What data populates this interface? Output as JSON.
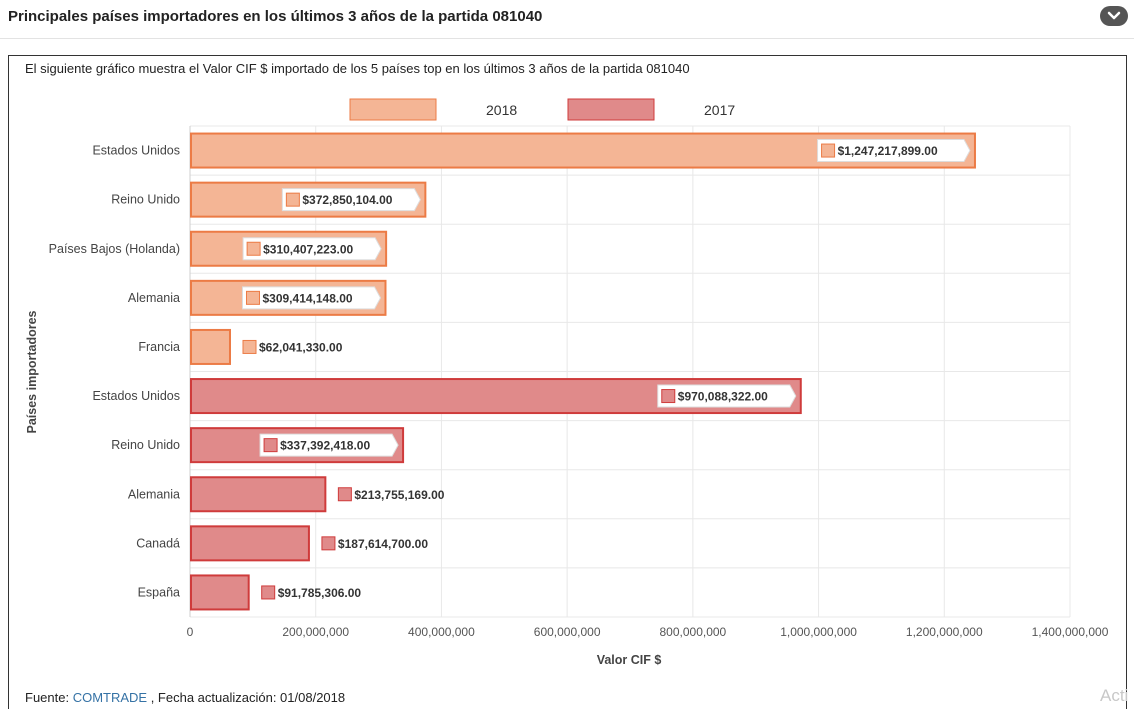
{
  "header": {
    "title": "Principales países importadores en los últimos 3 años de la partida 081040"
  },
  "description": "El siguiente gráfico muestra el Valor CIF $ importado de los 5 países top en los últimos 3 años de la partida 081040",
  "footer": {
    "source_label": "Fuente: ",
    "source_link": "COMTRADE",
    "update_text": " , Fecha actualización: 01/08/2018"
  },
  "watermark": "Acti",
  "colors": {
    "2018_fill": "#f4b595",
    "2018_stroke": "#ec7b45",
    "2017_fill": "#e08a8a",
    "2017_stroke": "#cf3b3b",
    "grid": "#e8e8e8"
  },
  "chart_data": {
    "type": "bar",
    "orientation": "horizontal",
    "xlabel": "Valor CIF $",
    "ylabel": "Países importadores",
    "xlim": [
      0,
      1400000000
    ],
    "xticks": [
      "0",
      "200,000,000",
      "400,000,000",
      "600,000,000",
      "800,000,000",
      "1,000,000,000",
      "1,200,000,000",
      "1,400,000,000"
    ],
    "grid": true,
    "legend_position": "top",
    "series": [
      {
        "name": "2018",
        "color_key": "2018",
        "bars": [
          {
            "country": "Estados Unidos",
            "value": 1247217899,
            "label": "$1,247,217,899.00"
          },
          {
            "country": "Reino Unido",
            "value": 372850104,
            "label": "$372,850,104.00"
          },
          {
            "country": "Países Bajos (Holanda)",
            "value": 310407223,
            "label": "$310,407,223.00"
          },
          {
            "country": "Alemania",
            "value": 309414148,
            "label": "$309,414,148.00"
          },
          {
            "country": "Francia",
            "value": 62041330,
            "label": "$62,041,330.00"
          }
        ]
      },
      {
        "name": "2017",
        "color_key": "2017",
        "bars": [
          {
            "country": "Estados Unidos",
            "value": 970088322,
            "label": "$970,088,322.00"
          },
          {
            "country": "Reino Unido",
            "value": 337392418,
            "label": "$337,392,418.00"
          },
          {
            "country": "Alemania",
            "value": 213755169,
            "label": "$213,755,169.00"
          },
          {
            "country": "Canadá",
            "value": 187614700,
            "label": "$187,614,700.00"
          },
          {
            "country": "España",
            "value": 91785306,
            "label": "$91,785,306.00"
          }
        ]
      }
    ]
  }
}
